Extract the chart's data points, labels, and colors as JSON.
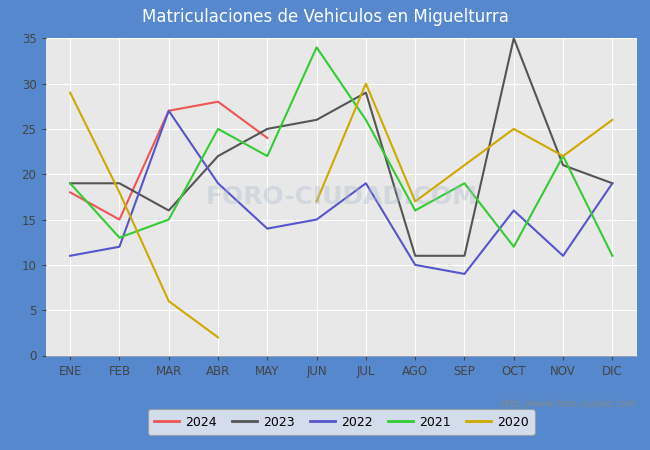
{
  "title": "Matriculaciones de Vehiculos en Miguelturra",
  "months": [
    "ENE",
    "FEB",
    "MAR",
    "ABR",
    "MAY",
    "JUN",
    "JUL",
    "AGO",
    "SEP",
    "OCT",
    "NOV",
    "DIC"
  ],
  "series": {
    "2024": {
      "color": "#ee5555",
      "data": [
        18,
        15,
        27,
        28,
        24,
        null,
        null,
        null,
        null,
        null,
        null,
        null
      ]
    },
    "2023": {
      "color": "#555555",
      "data": [
        19,
        19,
        16,
        22,
        25,
        26,
        29,
        11,
        11,
        35,
        21,
        19
      ]
    },
    "2022": {
      "color": "#5555cc",
      "data": [
        11,
        12,
        27,
        19,
        14,
        15,
        19,
        10,
        9,
        16,
        11,
        19
      ]
    },
    "2021": {
      "color": "#33cc33",
      "data": [
        19,
        13,
        15,
        25,
        22,
        34,
        26,
        16,
        19,
        12,
        22,
        11
      ]
    },
    "2020": {
      "color": "#ccaa00",
      "data": [
        29,
        18,
        6,
        2,
        null,
        17,
        30,
        17,
        21,
        25,
        22,
        26
      ]
    }
  },
  "ylim": [
    0,
    35
  ],
  "yticks": [
    0,
    5,
    10,
    15,
    20,
    25,
    30,
    35
  ],
  "title_bg_color": "#5588cc",
  "title_color": "white",
  "plot_bg_color": "#e8e8e8",
  "outer_bg_color": "#5588cc",
  "grid_color": "white",
  "watermark": "http://www.foro-ciudad.com",
  "title_fontsize": 12,
  "tick_fontsize": 8.5,
  "legend_fontsize": 9,
  "linewidth": 1.5
}
